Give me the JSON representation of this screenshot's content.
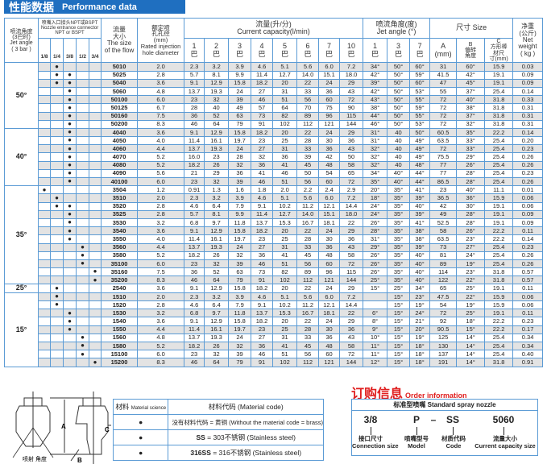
{
  "header": {
    "title_zh": "性能数据",
    "title_en": "Performance data"
  },
  "table": {
    "jet_angle_header": "喷流角度\n(3巴时)\nJet angle\n( 3 bar )",
    "connector_header": "喷嘴入口接头NPT或BSPT  Nozzle entrance connector NPT or BSPT",
    "connector_sizes": [
      "1/8",
      "1/4",
      "3/8",
      "1/2",
      "3/4"
    ],
    "size_header": "流量\n大小\nThe size\nof the flow",
    "hole_header": "额定喷\n孔孔径\n(mm)\nRated injection\nhole diameter",
    "flow_header": "流量(升/分)\nCurrent capacity(l/min)",
    "flow_pressures": [
      "1\n巴",
      "2\n巴",
      "3\n巴",
      "4\n巴",
      "5\n巴",
      "6\n巴",
      "7\n巴",
      "10\n巴"
    ],
    "jet_header": "喷流角度(度)\nJet angle (°)",
    "jet_pressures": [
      "1\n巴",
      "3\n巴",
      "7\n巴"
    ],
    "dim_header": "尺寸 Size",
    "dim_cols": [
      "A\n(mm)",
      "B\n偏转\n角度",
      "C\n方形棒\n材尺\n寸(mm)"
    ],
    "weight_header": "净重\n(公斤)\nNet\nweight\n( kg )",
    "dot": "●",
    "groups": [
      {
        "angle": "50°",
        "rows": [
          [
            "5010",
            [
              1
            ],
            "2.0",
            [
              "2.3",
              "3.2",
              "3.9",
              "4.6",
              "5.1",
              "5.6",
              "6.0",
              "7.2"
            ],
            [
              "34°",
              "50°",
              "60°"
            ],
            "31",
            "60°",
            "15.9",
            "0.03"
          ],
          [
            "5025",
            [
              1,
              2
            ],
            "2.8",
            [
              "5.7",
              "8.1",
              "9.9",
              "11.4",
              "12.7",
              "14.0",
              "15.1",
              "18.0"
            ],
            [
              "42°",
              "50°",
              "59°"
            ],
            "41.5",
            "42°",
            "19.1",
            "0.09"
          ],
          [
            "5040",
            [
              1,
              2
            ],
            "3.6",
            [
              "9.1",
              "12.9",
              "15.8",
              "18.2",
              "20",
              "22",
              "24",
              "29"
            ],
            [
              "39°",
              "50°",
              "60°"
            ],
            "47",
            "45°",
            "19.1",
            "0.09"
          ],
          [
            "5060",
            [
              2
            ],
            "4.8",
            [
              "13.7",
              "19.3",
              "24",
              "27",
              "31",
              "33",
              "36",
              "43"
            ],
            [
              "42°",
              "50°",
              "53°"
            ],
            "55",
            "37°",
            "25.4",
            "0.14"
          ],
          [
            "50100",
            [
              2
            ],
            "6.0",
            [
              "23",
              "32",
              "39",
              "46",
              "51",
              "56",
              "60",
              "72"
            ],
            [
              "43°",
              "50°",
              "55°"
            ],
            "72",
            "40°",
            "31.8",
            "0.33"
          ],
          [
            "50125",
            [
              2
            ],
            "6.7",
            [
              "28",
              "40",
              "49",
              "57",
              "64",
              "70",
              "75",
              "90"
            ],
            [
              "38°",
              "50°",
              "59°"
            ],
            "72",
            "38°",
            "31.8",
            "0.31"
          ],
          [
            "50160",
            [
              2
            ],
            "7.5",
            [
              "36",
              "52",
              "63",
              "73",
              "82",
              "89",
              "96",
              "115"
            ],
            [
              "44°",
              "50°",
              "55°"
            ],
            "72",
            "37°",
            "31.8",
            "0.31"
          ],
          [
            "50200",
            [
              2
            ],
            "8.3",
            [
              "46",
              "64",
              "79",
              "91",
              "102",
              "112",
              "121",
              "144"
            ],
            [
              "46°",
              "50°",
              "53°"
            ],
            "72",
            "32°",
            "31.8",
            "0.31"
          ]
        ]
      },
      {
        "angle": "40°",
        "rows": [
          [
            "4040",
            [
              2
            ],
            "3.6",
            [
              "9.1",
              "12.9",
              "15.8",
              "18.2",
              "20",
              "22",
              "24",
              "29"
            ],
            [
              "31°",
              "40",
              "50°"
            ],
            "60.5",
            "35°",
            "22.2",
            "0.14"
          ],
          [
            "4050",
            [
              2
            ],
            "4.0",
            [
              "11.4",
              "16.1",
              "19.7",
              "23",
              "25",
              "28",
              "30",
              "36"
            ],
            [
              "31°",
              "40",
              "49°"
            ],
            "63.5",
            "33°",
            "25.4",
            "0.20"
          ],
          [
            "4060",
            [
              2
            ],
            "4.4",
            [
              "13.7",
              "19.3",
              "24",
              "27",
              "31",
              "33",
              "36",
              "43"
            ],
            [
              "32°",
              "40",
              "49°"
            ],
            "72",
            "33°",
            "25.4",
            "0.23"
          ],
          [
            "4070",
            [
              2
            ],
            "5.2",
            [
              "16.0",
              "23",
              "28",
              "32",
              "36",
              "39",
              "42",
              "50"
            ],
            [
              "32°",
              "40",
              "49°"
            ],
            "75.5",
            "29°",
            "25.4",
            "0.26"
          ],
          [
            "4080",
            [
              2
            ],
            "5.2",
            [
              "18.2",
              "26",
              "32",
              "36",
              "41",
              "45",
              "48",
              "58"
            ],
            [
              "32°",
              "40",
              "48°"
            ],
            "77",
            "26°",
            "25.4",
            "0.26"
          ],
          [
            "4090",
            [
              2
            ],
            "5.6",
            [
              "21",
              "29",
              "36",
              "41",
              "46",
              "50",
              "54",
              "65"
            ],
            [
              "34°",
              "40°",
              "44°"
            ],
            "77",
            "28°",
            "25.4",
            "0.23"
          ],
          [
            "40100",
            [
              2
            ],
            "6.0",
            [
              "23",
              "32",
              "39",
              "46",
              "51",
              "56",
              "60",
              "72"
            ],
            [
              "35°",
              "40°",
              "44°"
            ],
            "86.5",
            "28°",
            "25.4",
            "0.26"
          ]
        ]
      },
      {
        "angle": "35°",
        "rows": [
          [
            "3504",
            [
              0
            ],
            "1.2",
            [
              "0.91",
              "1.3",
              "1.6",
              "1.8",
              "2.0",
              "2.2",
              "2.4",
              "2.9"
            ],
            [
              "20°",
              "35°",
              "41°"
            ],
            "23",
            "40°",
            "11.1",
            "0.01"
          ],
          [
            "3510",
            [
              1
            ],
            "2.0",
            [
              "2.3",
              "3.2",
              "3.9",
              "4.6",
              "5.1",
              "5.6",
              "6.0",
              "7.2"
            ],
            [
              "18°",
              "35°",
              "39°"
            ],
            "36.5",
            "36°",
            "15.9",
            "0.06"
          ],
          [
            "3520",
            [
              1,
              2
            ],
            "2.8",
            [
              "4.6",
              "6.4",
              "7.9",
              "9.1",
              "10.2",
              "11.2",
              "12.1",
              "14.4"
            ],
            [
              "24°",
              "35°",
              "40°"
            ],
            "42",
            "30°",
            "19.1",
            "0.06"
          ],
          [
            "3525",
            [
              2
            ],
            "2.8",
            [
              "5.7",
              "8.1",
              "9.9",
              "11.4",
              "12.7",
              "14.0",
              "15.1",
              "18.0"
            ],
            [
              "24°",
              "35°",
              "39°"
            ],
            "49",
            "28°",
            "19.1",
            "0.09"
          ],
          [
            "3530",
            [
              2
            ],
            "3.2",
            [
              "6.8",
              "9.7",
              "11.8",
              "13.7",
              "15.3",
              "16.7",
              "18.1",
              "22"
            ],
            [
              "26°",
              "35°",
              "41°"
            ],
            "52.5",
            "28°",
            "19.1",
            "0.09"
          ],
          [
            "3540",
            [
              2
            ],
            "3.6",
            [
              "9.1",
              "12.9",
              "15.8",
              "18.2",
              "20",
              "22",
              "24",
              "29"
            ],
            [
              "28°",
              "35°",
              "38°"
            ],
            "58",
            "26°",
            "22.2",
            "0.11"
          ],
          [
            "3550",
            [
              2
            ],
            "4.0",
            [
              "11.4",
              "16.1",
              "19.7",
              "23",
              "25",
              "28",
              "30",
              "36"
            ],
            [
              "31°",
              "35°",
              "38°"
            ],
            "63.5",
            "23°",
            "22.2",
            "0.14"
          ],
          [
            "3560",
            [
              3
            ],
            "4.4",
            [
              "13.7",
              "19.3",
              "24",
              "27",
              "31",
              "33",
              "36",
              "43"
            ],
            [
              "29°",
              "35°",
              "39°"
            ],
            "73",
            "27°",
            "25.4",
            "0.23"
          ],
          [
            "3580",
            [
              3
            ],
            "5.2",
            [
              "18.2",
              "26",
              "32",
              "36",
              "41",
              "45",
              "48",
              "58"
            ],
            [
              "26°",
              "35°",
              "40°"
            ],
            "81",
            "24°",
            "25.4",
            "0.26"
          ],
          [
            "35100",
            [
              3
            ],
            "6.0",
            [
              "23",
              "32",
              "39",
              "46",
              "51",
              "56",
              "60",
              "72"
            ],
            [
              "26°",
              "35°",
              "40°"
            ],
            "89",
            "19°",
            "25.4",
            "0.26"
          ],
          [
            "35160",
            [
              4
            ],
            "7.5",
            [
              "36",
              "52",
              "63",
              "73",
              "82",
              "89",
              "96",
              "115"
            ],
            [
              "26°",
              "35°",
              "40°"
            ],
            "114",
            "23°",
            "31.8",
            "0.57"
          ],
          [
            "35200",
            [
              4
            ],
            "8.3",
            [
              "46",
              "64",
              "79",
              "91",
              "102",
              "112",
              "121",
              "144"
            ],
            [
              "25°",
              "35°",
              "40°"
            ],
            "122",
            "22°",
            "31.8",
            "0.57"
          ]
        ]
      },
      {
        "angle": "25°",
        "rows": [
          [
            "2540",
            [
              1
            ],
            "3.6",
            [
              "9.1",
              "12.9",
              "15.8",
              "18.2",
              "20",
              "22",
              "24",
              "29"
            ],
            [
              "15°",
              "25°",
              "34°"
            ],
            "65",
            "25°",
            "19.1",
            "0.11"
          ]
        ]
      },
      {
        "angle": "15°",
        "rows": [
          [
            "1510",
            [
              1
            ],
            "2.0",
            [
              "2.3",
              "3.2",
              "3.9",
              "4.6",
              "5.1",
              "5.6",
              "6.0",
              "7.2"
            ],
            [
              "",
              "15°",
              "23°"
            ],
            "47.5",
            "22°",
            "15.9",
            "0.06"
          ],
          [
            "1520",
            [
              1
            ],
            "2.8",
            [
              "4.6",
              "6.4",
              "7.9",
              "9.1",
              "10.2",
              "11.2",
              "12.1",
              "14.4"
            ],
            [
              "",
              "15°",
              "19°"
            ],
            "54",
            "19°",
            "15.9",
            "0.06"
          ],
          [
            "1530",
            [
              2
            ],
            "3.2",
            [
              "6.8",
              "9.7",
              "11.8",
              "13.7",
              "15.3",
              "16.7",
              "18.1",
              "22"
            ],
            [
              "6°",
              "15°",
              "24°"
            ],
            "72",
            "25°",
            "19.1",
            "0.11"
          ],
          [
            "1540",
            [
              2
            ],
            "3.6",
            [
              "9.1",
              "12.9",
              "15.8",
              "18.2",
              "20",
              "22",
              "24",
              "29"
            ],
            [
              "8°",
              "15°",
              "21°"
            ],
            "92",
            "18°",
            "22.2",
            "0.23"
          ],
          [
            "1550",
            [
              2
            ],
            "4.4",
            [
              "11.4",
              "16.1",
              "19.7",
              "23",
              "25",
              "28",
              "30",
              "36"
            ],
            [
              "9°",
              "15°",
              "20°"
            ],
            "90.5",
            "15°",
            "22.2",
            "0.17"
          ],
          [
            "1560",
            [
              3
            ],
            "4.8",
            [
              "13.7",
              "19.3",
              "24",
              "27",
              "31",
              "33",
              "36",
              "43"
            ],
            [
              "10°",
              "15°",
              "19°"
            ],
            "125",
            "14°",
            "25.4",
            "0.34"
          ],
          [
            "1580",
            [
              3
            ],
            "5.2",
            [
              "18.2",
              "26",
              "32",
              "36",
              "41",
              "45",
              "48",
              "58"
            ],
            [
              "11°",
              "15°",
              "18°"
            ],
            "130",
            "14°",
            "25.4",
            "0.34"
          ],
          [
            "15100",
            [
              3
            ],
            "6.0",
            [
              "23",
              "32",
              "39",
              "46",
              "51",
              "56",
              "60",
              "72"
            ],
            [
              "11°",
              "15°",
              "18°"
            ],
            "137",
            "14°",
            "25.4",
            "0.40"
          ],
          [
            "15200",
            [
              4
            ],
            "8.3",
            [
              "46",
              "64",
              "79",
              "91",
              "102",
              "112",
              "121",
              "144"
            ],
            [
              "12°",
              "15°",
              "18°"
            ],
            "191",
            "14°",
            "31.8",
            "0.91"
          ]
        ]
      }
    ]
  },
  "diagram": {
    "label_a": "A",
    "label_b": "B",
    "label_c": "C",
    "spray_angle": "喷射\n角度"
  },
  "material": {
    "header_left": "材料",
    "header_left_en": "Material science",
    "header_right": "材料代码 (Material code)",
    "rows": [
      {
        "marker": "●",
        "text": "没有材料代码 = 黄铜 (Without the material code = brass)"
      },
      {
        "marker": "●",
        "code": "SS",
        "text": " = 303不锈钢 (Stainless steel)"
      },
      {
        "marker": "●",
        "code": "316SS",
        "text": " = 316不锈钢 (Stainless steel)"
      }
    ]
  },
  "order": {
    "title_zh": "订购信息",
    "title_en": "Order information",
    "box_title": "标准型喷嘴 Standard spray nozzle",
    "codes": [
      "3/8",
      "P",
      "–",
      "SS",
      "5060"
    ],
    "labels": [
      {
        "zh": "接口尺寸",
        "en": "Connection size"
      },
      {
        "zh": "喷嘴型号",
        "en": "Model"
      },
      {
        "zh": "材质代码",
        "en": "Code"
      },
      {
        "zh": "流量大小",
        "en": "Current capacity size"
      }
    ]
  },
  "colors": {
    "accent": "#1f6fc0",
    "grid": "#5b9bd5",
    "shade": "#e3e3e3",
    "order_title": "#e02020"
  }
}
